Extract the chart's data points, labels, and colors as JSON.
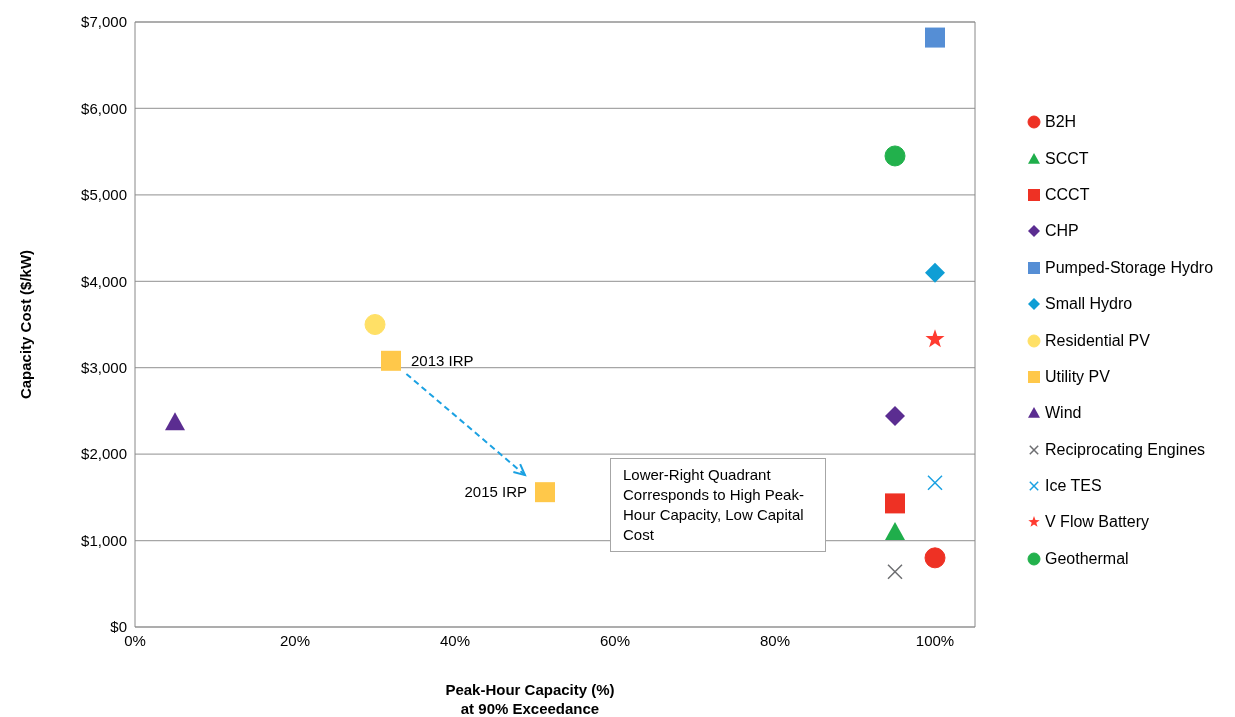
{
  "chart_data": {
    "type": "scatter",
    "xlabel": "Peak-Hour Capacity (%)\nat 90% Exceedance",
    "ylabel": "Capacity Cost ($/kW)",
    "xlim": [
      0,
      105
    ],
    "ylim": [
      0,
      7000
    ],
    "xticks": [
      {
        "value": 0,
        "label": "0%"
      },
      {
        "value": 20,
        "label": "20%"
      },
      {
        "value": 40,
        "label": "40%"
      },
      {
        "value": 60,
        "label": "60%"
      },
      {
        "value": 80,
        "label": "80%"
      },
      {
        "value": 100,
        "label": "100%"
      }
    ],
    "yticks": [
      {
        "value": 0,
        "label": "$0"
      },
      {
        "value": 1000,
        "label": "$1,000"
      },
      {
        "value": 2000,
        "label": "$2,000"
      },
      {
        "value": 3000,
        "label": "$3,000"
      },
      {
        "value": 4000,
        "label": "$4,000"
      },
      {
        "value": 5000,
        "label": "$5,000"
      },
      {
        "value": 6000,
        "label": "$6,000"
      },
      {
        "value": 7000,
        "label": "$7,000"
      }
    ],
    "grid": "y",
    "legend": "right",
    "series": [
      {
        "name": "B2H",
        "color": "#ee3124",
        "marker": "circle",
        "x": [
          100
        ],
        "values": [
          800
        ]
      },
      {
        "name": "SCCT",
        "color": "#1fae4b",
        "marker": "triangle",
        "x": [
          95
        ],
        "values": [
          1100
        ]
      },
      {
        "name": "CCCT",
        "color": "#ee3124",
        "marker": "square",
        "x": [
          95
        ],
        "values": [
          1430
        ]
      },
      {
        "name": "CHP",
        "color": "#5b2d91",
        "marker": "diamond",
        "x": [
          95
        ],
        "values": [
          2440
        ]
      },
      {
        "name": "Pumped-Storage Hydro",
        "color": "#558ed5",
        "marker": "square",
        "x": [
          100
        ],
        "values": [
          6820
        ]
      },
      {
        "name": "Small Hydro",
        "color": "#0f9ed5",
        "marker": "diamond",
        "x": [
          100
        ],
        "values": [
          4100
        ]
      },
      {
        "name": "Residential PV",
        "color": "#ffe066",
        "marker": "circle",
        "x": [
          30
        ],
        "values": [
          3500
        ]
      },
      {
        "name": "Utility PV",
        "color": "#ffc84a",
        "marker": "square",
        "x": [
          32,
          51.25
        ],
        "values": [
          3080,
          1560
        ]
      },
      {
        "name": "Wind",
        "color": "#5b2d91",
        "marker": "triangle",
        "x": [
          5
        ],
        "values": [
          2370
        ]
      },
      {
        "name": "Reciprocating Engines",
        "color": "#6d6e71",
        "marker": "cross",
        "x": [
          95
        ],
        "values": [
          640
        ]
      },
      {
        "name": "Ice TES",
        "color": "#1ba1e2",
        "marker": "cross",
        "x": [
          100
        ],
        "values": [
          1670
        ]
      },
      {
        "name": "V Flow Battery",
        "color": "#ff3b30",
        "marker": "star",
        "x": [
          100
        ],
        "values": [
          3330
        ]
      },
      {
        "name": "Geothermal",
        "color": "#22b14c",
        "marker": "circle",
        "x": [
          95
        ],
        "values": [
          5450
        ]
      }
    ],
    "annotations": [
      {
        "text": "2013 IRP",
        "x": 32,
        "y": 3080
      },
      {
        "text": "2015 IRP",
        "x": 51.25,
        "y": 1560
      },
      "Lower-Right Quadrant Corresponds to High Peak-Hour Capacity, Low Capital Cost"
    ]
  }
}
